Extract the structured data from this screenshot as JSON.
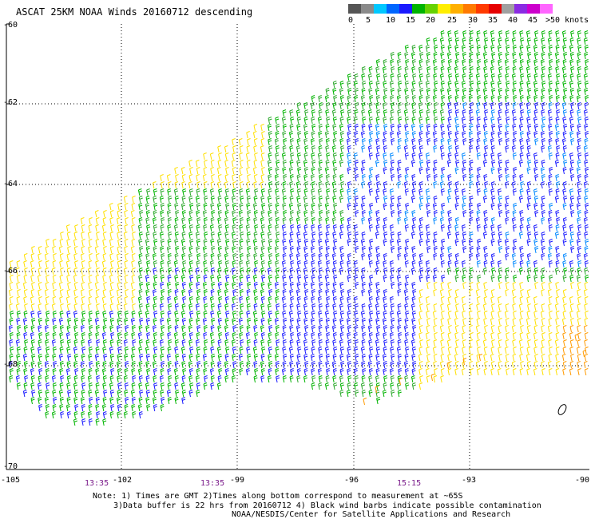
{
  "title": "ASCAT 25KM NOAA Winds 20160712 descending",
  "colorbar": {
    "colors": [
      "#555555",
      "#8a8a8a",
      "#00c8ff",
      "#0066ff",
      "#1a1aff",
      "#00b400",
      "#66d200",
      "#ffee00",
      "#ffb000",
      "#ff7a00",
      "#ff3a00",
      "#e60000",
      "#a0a0a0",
      "#8a2be2",
      "#cc00cc",
      "#ff66ff"
    ],
    "labels": [
      "0",
      "5",
      "10",
      "15",
      "20",
      "25",
      "30",
      "35",
      "40",
      "45",
      ">50 knots"
    ]
  },
  "map": {
    "lat_ticks": [
      "-60",
      "-62",
      "-64",
      "-66",
      "-68",
      "-70"
    ],
    "lon_ticks": [
      "-105",
      "-102",
      "-99",
      "-96",
      "-93",
      "-90"
    ],
    "time_labels": [
      "13:35",
      "13:35",
      "15:15"
    ]
  },
  "notes": {
    "line1": "Note: 1) Times are GMT 2)Times along bottom correspond to measurement at ~65S",
    "line2": "3)Data buffer is 22 hrs from 20160712 4) Black wind barbs indicate possible contamination",
    "line3": "NOAA/NESDIS/Center for Satellite Applications and Research"
  }
}
